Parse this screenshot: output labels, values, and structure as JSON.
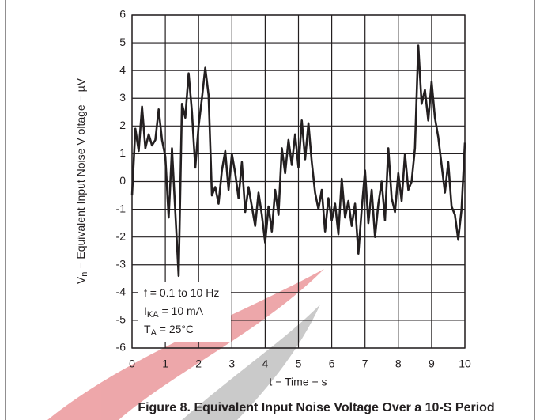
{
  "chart_data": {
    "type": "line",
    "title": "Figure 8. Equivalent Input Noise Voltage Over a 10-S Period",
    "x_label": "t − Time − s",
    "y_label": {
      "text": "V",
      "sub": "n",
      "after": " − Equivalent Input Noise V oltage − µV"
    },
    "annotations": [
      {
        "text": "f = 0.1 to 10 Hz"
      },
      {
        "text": "I",
        "sub": "KA",
        "after": " = 10 mA"
      },
      {
        "text": "T",
        "sub": "A",
        "after": " = 25°C"
      }
    ],
    "x": [
      0,
      0.1,
      0.2,
      0.3,
      0.4,
      0.5,
      0.6,
      0.7,
      0.8,
      0.9,
      1,
      1.1,
      1.2,
      1.3,
      1.4,
      1.5,
      1.6,
      1.7,
      1.8,
      1.9,
      2,
      2.1,
      2.2,
      2.3,
      2.4,
      2.5,
      2.6,
      2.7,
      2.8,
      2.9,
      3,
      3.1,
      3.2,
      3.3,
      3.4,
      3.5,
      3.6,
      3.7,
      3.8,
      3.9,
      4,
      4.1,
      4.2,
      4.3,
      4.4,
      4.5,
      4.6,
      4.7,
      4.8,
      4.9,
      5,
      5.1,
      5.2,
      5.3,
      5.4,
      5.5,
      5.6,
      5.7,
      5.8,
      5.9,
      6,
      6.1,
      6.2,
      6.3,
      6.4,
      6.5,
      6.6,
      6.7,
      6.8,
      6.9,
      7,
      7.1,
      7.2,
      7.3,
      7.4,
      7.5,
      7.6,
      7.7,
      7.8,
      7.9,
      8,
      8.1,
      8.2,
      8.3,
      8.4,
      8.5,
      8.6,
      8.7,
      8.8,
      8.9,
      9,
      9.1,
      9.2,
      9.3,
      9.4,
      9.5,
      9.6,
      9.7,
      9.8,
      9.9,
      10
    ],
    "series": [
      {
        "color": "#231f20",
        "values": [
          -0.5,
          1.9,
          1.1,
          2.7,
          1.2,
          1.7,
          1.3,
          1.5,
          2.6,
          1.5,
          0.9,
          -1.3,
          1.2,
          -1.1,
          -3.4,
          2.8,
          2.3,
          3.9,
          2.5,
          0.5,
          2.0,
          3.0,
          4.1,
          3.1,
          -0.5,
          -0.2,
          -0.8,
          0.4,
          1.1,
          -0.3,
          1.0,
          0.3,
          -0.6,
          0.7,
          -1.1,
          -0.2,
          -0.9,
          -1.6,
          -0.4,
          -1.2,
          -2.2,
          -0.9,
          -1.8,
          -0.3,
          -1.2,
          1.2,
          0.3,
          1.5,
          0.6,
          1.7,
          0.5,
          2.2,
          0.8,
          2.1,
          0.7,
          -0.4,
          -1.0,
          -0.3,
          -1.8,
          -0.6,
          -1.4,
          -0.8,
          -1.9,
          0.1,
          -1.3,
          -0.7,
          -1.6,
          -0.8,
          -2.6,
          -1.0,
          0.4,
          -1.5,
          -0.3,
          -2.0,
          -0.8,
          0.0,
          -1.4,
          1.2,
          -0.6,
          -1.1,
          0.3,
          -0.7,
          1.0,
          -0.3,
          0.0,
          1.2,
          4.9,
          2.8,
          3.3,
          2.2,
          3.6,
          2.3,
          1.6,
          0.6,
          -0.4,
          0.7,
          -0.9,
          -1.2,
          -2.1,
          -1.0,
          1.4
        ]
      }
    ],
    "xlim": [
      0,
      10
    ],
    "xticks": [
      0,
      1,
      2,
      3,
      4,
      5,
      6,
      7,
      8,
      9,
      10
    ],
    "ylim": [
      -6,
      6
    ],
    "yticks": [
      -6,
      -5,
      -4,
      -3,
      -2,
      -1,
      0,
      1,
      2,
      3,
      4,
      5,
      6
    ],
    "grid": true
  }
}
